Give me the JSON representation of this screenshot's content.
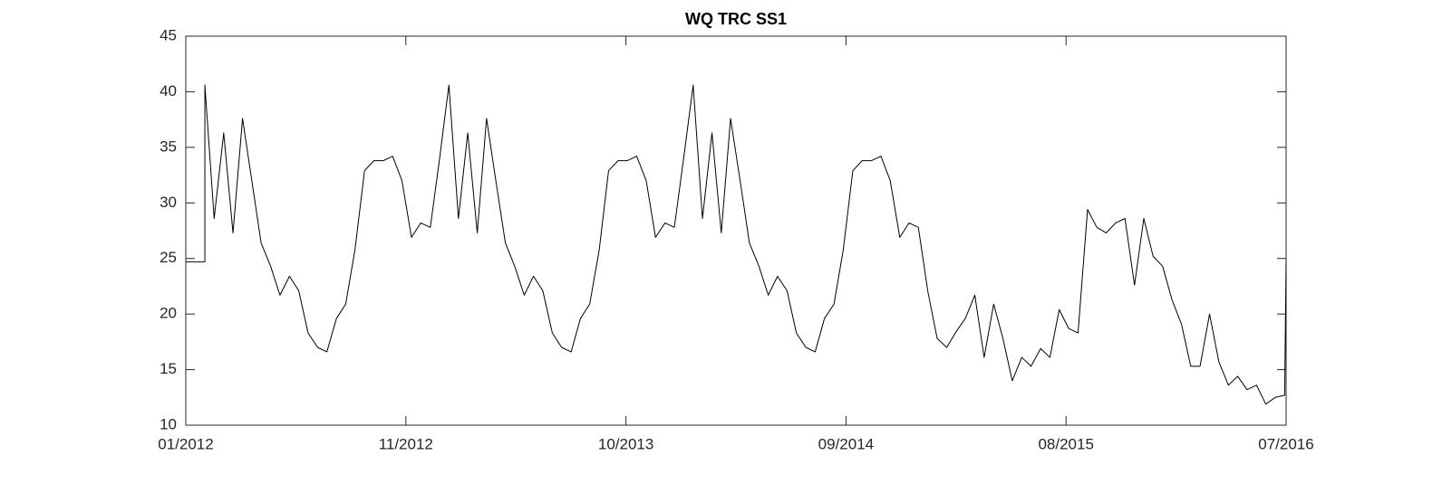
{
  "chart_data": {
    "type": "line",
    "title": "WQ TRC SS1",
    "x": [
      2012.0,
      2012.078,
      2012.078,
      2012.116,
      2012.155,
      2012.193,
      2012.232,
      2012.27,
      2012.308,
      2012.347,
      2012.385,
      2012.424,
      2012.462,
      2012.5,
      2012.539,
      2012.577,
      2012.616,
      2012.654,
      2012.692,
      2012.731,
      2012.769,
      2012.808,
      2012.846,
      2012.884,
      2012.923,
      2012.961,
      2013.0,
      2013.038,
      2013.076,
      2013.115,
      2013.153,
      2013.192,
      2013.23,
      2013.268,
      2013.307,
      2013.345,
      2013.384,
      2013.422,
      2013.46,
      2013.499,
      2013.537,
      2013.576,
      2013.614,
      2013.652,
      2013.691,
      2013.729,
      2013.768,
      2013.806,
      2013.844,
      2013.883,
      2013.921,
      2013.96,
      2013.998,
      2014.036,
      2014.075,
      2014.113,
      2014.152,
      2014.19,
      2014.228,
      2014.267,
      2014.305,
      2014.344,
      2014.382,
      2014.42,
      2014.459,
      2014.497,
      2014.536,
      2014.574,
      2014.612,
      2014.651,
      2014.689,
      2014.728,
      2014.766,
      2014.804,
      2014.843,
      2014.881,
      2014.92,
      2014.958,
      2014.996,
      2015.035,
      2015.073,
      2015.112,
      2015.15,
      2015.188,
      2015.227,
      2015.265,
      2015.304,
      2015.342,
      2015.38,
      2015.419,
      2015.457,
      2015.496,
      2015.534,
      2015.572,
      2015.611,
      2015.649,
      2015.688,
      2015.726,
      2015.764,
      2015.803,
      2015.841,
      2015.88,
      2015.918,
      2015.956,
      2015.995,
      2016.033,
      2016.072,
      2016.11,
      2016.148,
      2016.187,
      2016.225,
      2016.264,
      2016.302,
      2016.34,
      2016.379,
      2016.417,
      2016.456,
      2016.494,
      2016.5
    ],
    "series": [
      {
        "color": "#000000",
        "values": [
          24.7,
          24.7,
          40.6,
          28.6,
          36.3,
          27.3,
          37.6,
          32.0,
          26.4,
          24.3,
          21.7,
          23.4,
          22.1,
          18.3,
          17.0,
          16.6,
          19.6,
          20.9,
          25.8,
          32.9,
          33.8,
          33.8,
          34.2,
          32.0,
          26.9,
          28.2,
          27.8,
          34.0,
          40.6,
          28.6,
          36.3,
          27.3,
          37.6,
          32.0,
          26.4,
          24.3,
          21.7,
          23.4,
          22.1,
          18.3,
          17.0,
          16.6,
          19.6,
          20.9,
          25.8,
          32.9,
          33.8,
          33.8,
          34.2,
          32.0,
          26.9,
          28.2,
          27.8,
          34.0,
          40.6,
          28.6,
          36.3,
          27.3,
          37.6,
          32.0,
          26.4,
          24.3,
          21.7,
          23.4,
          22.1,
          18.3,
          17.0,
          16.6,
          19.6,
          20.9,
          25.8,
          32.9,
          33.8,
          33.8,
          34.2,
          32.0,
          26.9,
          28.2,
          27.8,
          22.0,
          17.8,
          17.0,
          18.4,
          19.6,
          21.7,
          16.1,
          20.9,
          17.8,
          14.0,
          16.1,
          15.3,
          16.9,
          16.1,
          20.4,
          18.7,
          18.3,
          29.4,
          27.8,
          27.3,
          28.2,
          28.6,
          22.6,
          28.6,
          25.2,
          24.3,
          21.3,
          19.1,
          15.3,
          15.3,
          20.0,
          15.7,
          13.6,
          14.4,
          13.2,
          13.6,
          11.9,
          12.5,
          12.7,
          24.7
        ]
      }
    ],
    "xlim": [
      2012.0,
      2016.5
    ],
    "xticks": [
      {
        "value": 2012.0,
        "label": "01/2012"
      },
      {
        "value": 2012.9,
        "label": "11/2012"
      },
      {
        "value": 2013.8,
        "label": "10/2013"
      },
      {
        "value": 2014.7,
        "label": "09/2014"
      },
      {
        "value": 2015.6,
        "label": "08/2015"
      },
      {
        "value": 2016.5,
        "label": "07/2016"
      }
    ],
    "ylim": [
      10,
      45
    ],
    "yticks": [
      10,
      15,
      20,
      25,
      30,
      35,
      40,
      45
    ],
    "grid": false
  }
}
